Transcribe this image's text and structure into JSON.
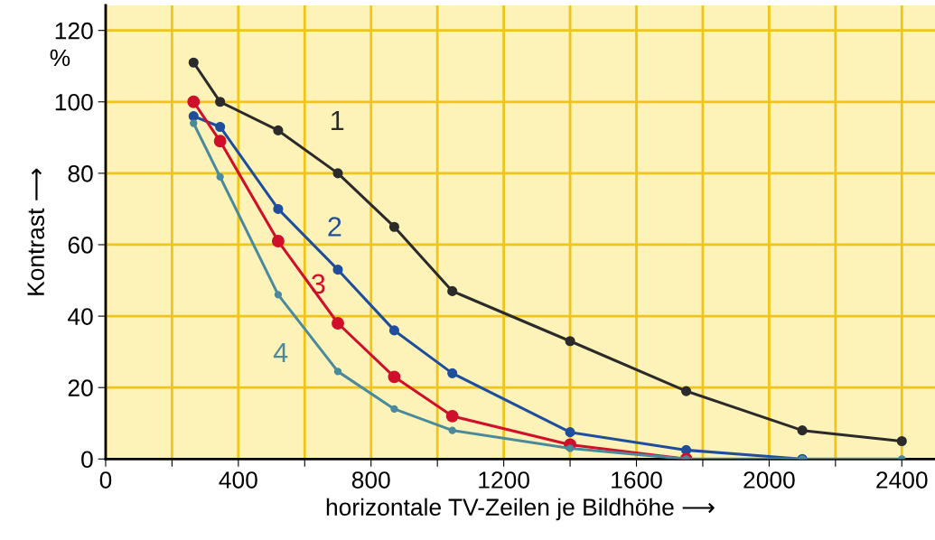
{
  "chart_data": {
    "type": "line",
    "xlabel": "horizontale TV-Zeilen je Bildhöhe ⟶",
    "ylabel": "Kontrast ⟶",
    "x": [
      265,
      345,
      520,
      700,
      870,
      1045,
      1400,
      1750,
      2100,
      2400
    ],
    "series": [
      {
        "name": "1",
        "color": "#2b2b2b",
        "values": [
          111,
          100,
          92,
          80,
          65,
          47,
          33,
          19,
          8,
          5
        ]
      },
      {
        "name": "2",
        "color": "#1f4e9c",
        "values": [
          96,
          93,
          70,
          53,
          36,
          24,
          7.5,
          2.5,
          0,
          null
        ]
      },
      {
        "name": "3",
        "color": "#d0102a",
        "values": [
          100,
          89,
          61,
          38,
          23,
          12,
          4,
          0,
          null,
          null
        ]
      },
      {
        "name": "4",
        "color": "#4a8a9c",
        "values": [
          94,
          79,
          46,
          24.5,
          14,
          8,
          3,
          0,
          0,
          0
        ]
      }
    ],
    "annotations": [
      "%"
    ],
    "xlim": [
      0,
      2500
    ],
    "ylim": [
      0,
      127
    ],
    "xticks": [
      0,
      {
        "value": 200,
        "label": null
      },
      400,
      {
        "value": 600,
        "label": null
      },
      800,
      {
        "value": 1000,
        "label": null
      },
      1200,
      {
        "value": 1400,
        "label": null
      },
      1600,
      {
        "value": 1800,
        "label": null
      },
      2000,
      {
        "value": 2200,
        "label": null
      },
      2400
    ],
    "yticks": [
      0,
      20,
      40,
      60,
      80,
      100,
      120
    ],
    "grid": true,
    "marker": "circle",
    "line_style": "solid",
    "legend": false
  }
}
